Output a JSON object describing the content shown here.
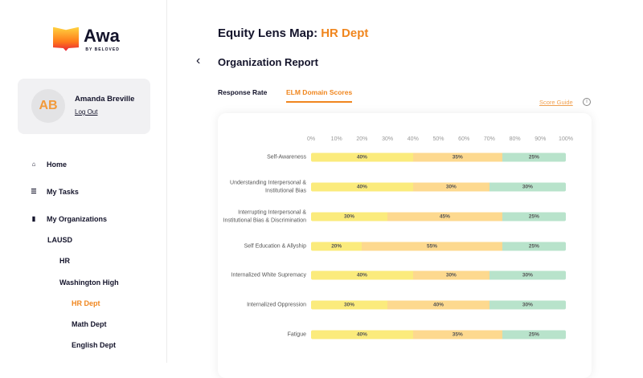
{
  "brand": {
    "name": "Awa",
    "tagline": "BY BELOVED"
  },
  "user": {
    "initials": "AB",
    "name": "Amanda Breville",
    "logout": "Log Out"
  },
  "nav": [
    {
      "label": "Home",
      "icon": "home-icon",
      "glyph": "⌂"
    },
    {
      "label": "My Tasks",
      "icon": "list-icon",
      "glyph": "☰"
    },
    {
      "label": "My Organizations",
      "icon": "book-icon",
      "glyph": "▮"
    }
  ],
  "orgs": [
    {
      "label": "LAUSD",
      "level": 0
    },
    {
      "label": "HR",
      "level": 1
    },
    {
      "label": "Washington High",
      "level": 1
    },
    {
      "label": "HR Dept",
      "level": 2,
      "active": true
    },
    {
      "label": "Math Dept",
      "level": 2
    },
    {
      "label": "English Dept",
      "level": 2
    }
  ],
  "header": {
    "title": "Equity Lens Map:",
    "dept": "HR Dept",
    "back": "‹",
    "report": "Organization Report"
  },
  "tabs": [
    {
      "label": "Response Rate"
    },
    {
      "label": "ELM Domain Scores",
      "selected": true
    }
  ],
  "score_guide": "Score Guide",
  "colors": {
    "yellow": "#fbeb7c",
    "orange": "#fdd98f",
    "green": "#b8e3cb",
    "accent": "#f0861e"
  },
  "chart_data": {
    "type": "bar",
    "stacked": true,
    "orientation": "horizontal",
    "ticks": [
      "0%",
      "10%",
      "20%",
      "30%",
      "40%",
      "50%",
      "60%",
      "70%",
      "80%",
      "90%",
      "100%"
    ],
    "xlim": [
      0,
      100
    ],
    "categories": [
      "Self-Awareness",
      "Understanding Interpersonal & Institutional Bias",
      "Interrupting Interpersonal & Institutional Bias & Discrimination",
      "Self Education & Allyship",
      "Internalized White Supremacy",
      "Internalized Oppression",
      "Fatigue"
    ],
    "series": [
      {
        "name": "yellow",
        "values": [
          40,
          40,
          30,
          20,
          40,
          30,
          40
        ]
      },
      {
        "name": "orange",
        "values": [
          35,
          30,
          45,
          55,
          30,
          40,
          35
        ]
      },
      {
        "name": "green",
        "values": [
          25,
          30,
          25,
          25,
          30,
          30,
          25
        ]
      }
    ]
  }
}
